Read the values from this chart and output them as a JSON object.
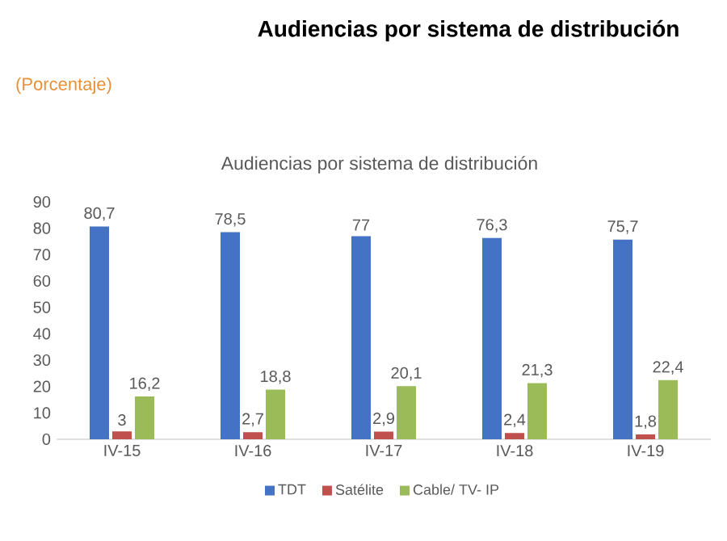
{
  "chart_data": {
    "type": "bar",
    "title": "Audiencias por sistema de distribución",
    "subtitle": "(Porcentaje)",
    "annotations": [
      "Audiencias por sistema de distribución"
    ],
    "categories": [
      "IV-15",
      "IV-16",
      "IV-17",
      "IV-18",
      "IV-19"
    ],
    "series": [
      {
        "name": "TDT",
        "color": "#4472c4",
        "values": [
          80.7,
          78.5,
          77,
          76.3,
          75.7
        ],
        "value_labels": [
          "80,7",
          "78,5",
          "77",
          "76,3",
          "75,7"
        ]
      },
      {
        "name": "Satélite",
        "color": "#c0504d",
        "values": [
          3,
          2.7,
          2.9,
          2.4,
          1.8
        ],
        "value_labels": [
          "3",
          "2,7",
          "2,9",
          "2,4",
          "1,8"
        ]
      },
      {
        "name": "Cable/ TV- IP",
        "color": "#9bbb59",
        "values": [
          16.2,
          18.8,
          20.1,
          21.3,
          22.4
        ],
        "value_labels": [
          "16,2",
          "18,8",
          "20,1",
          "21,3",
          "22,4"
        ]
      }
    ],
    "ylim": [
      0,
      90
    ],
    "yticks": [
      0,
      10,
      20,
      30,
      40,
      50,
      60,
      70,
      80,
      90
    ],
    "legend": "bottom"
  }
}
